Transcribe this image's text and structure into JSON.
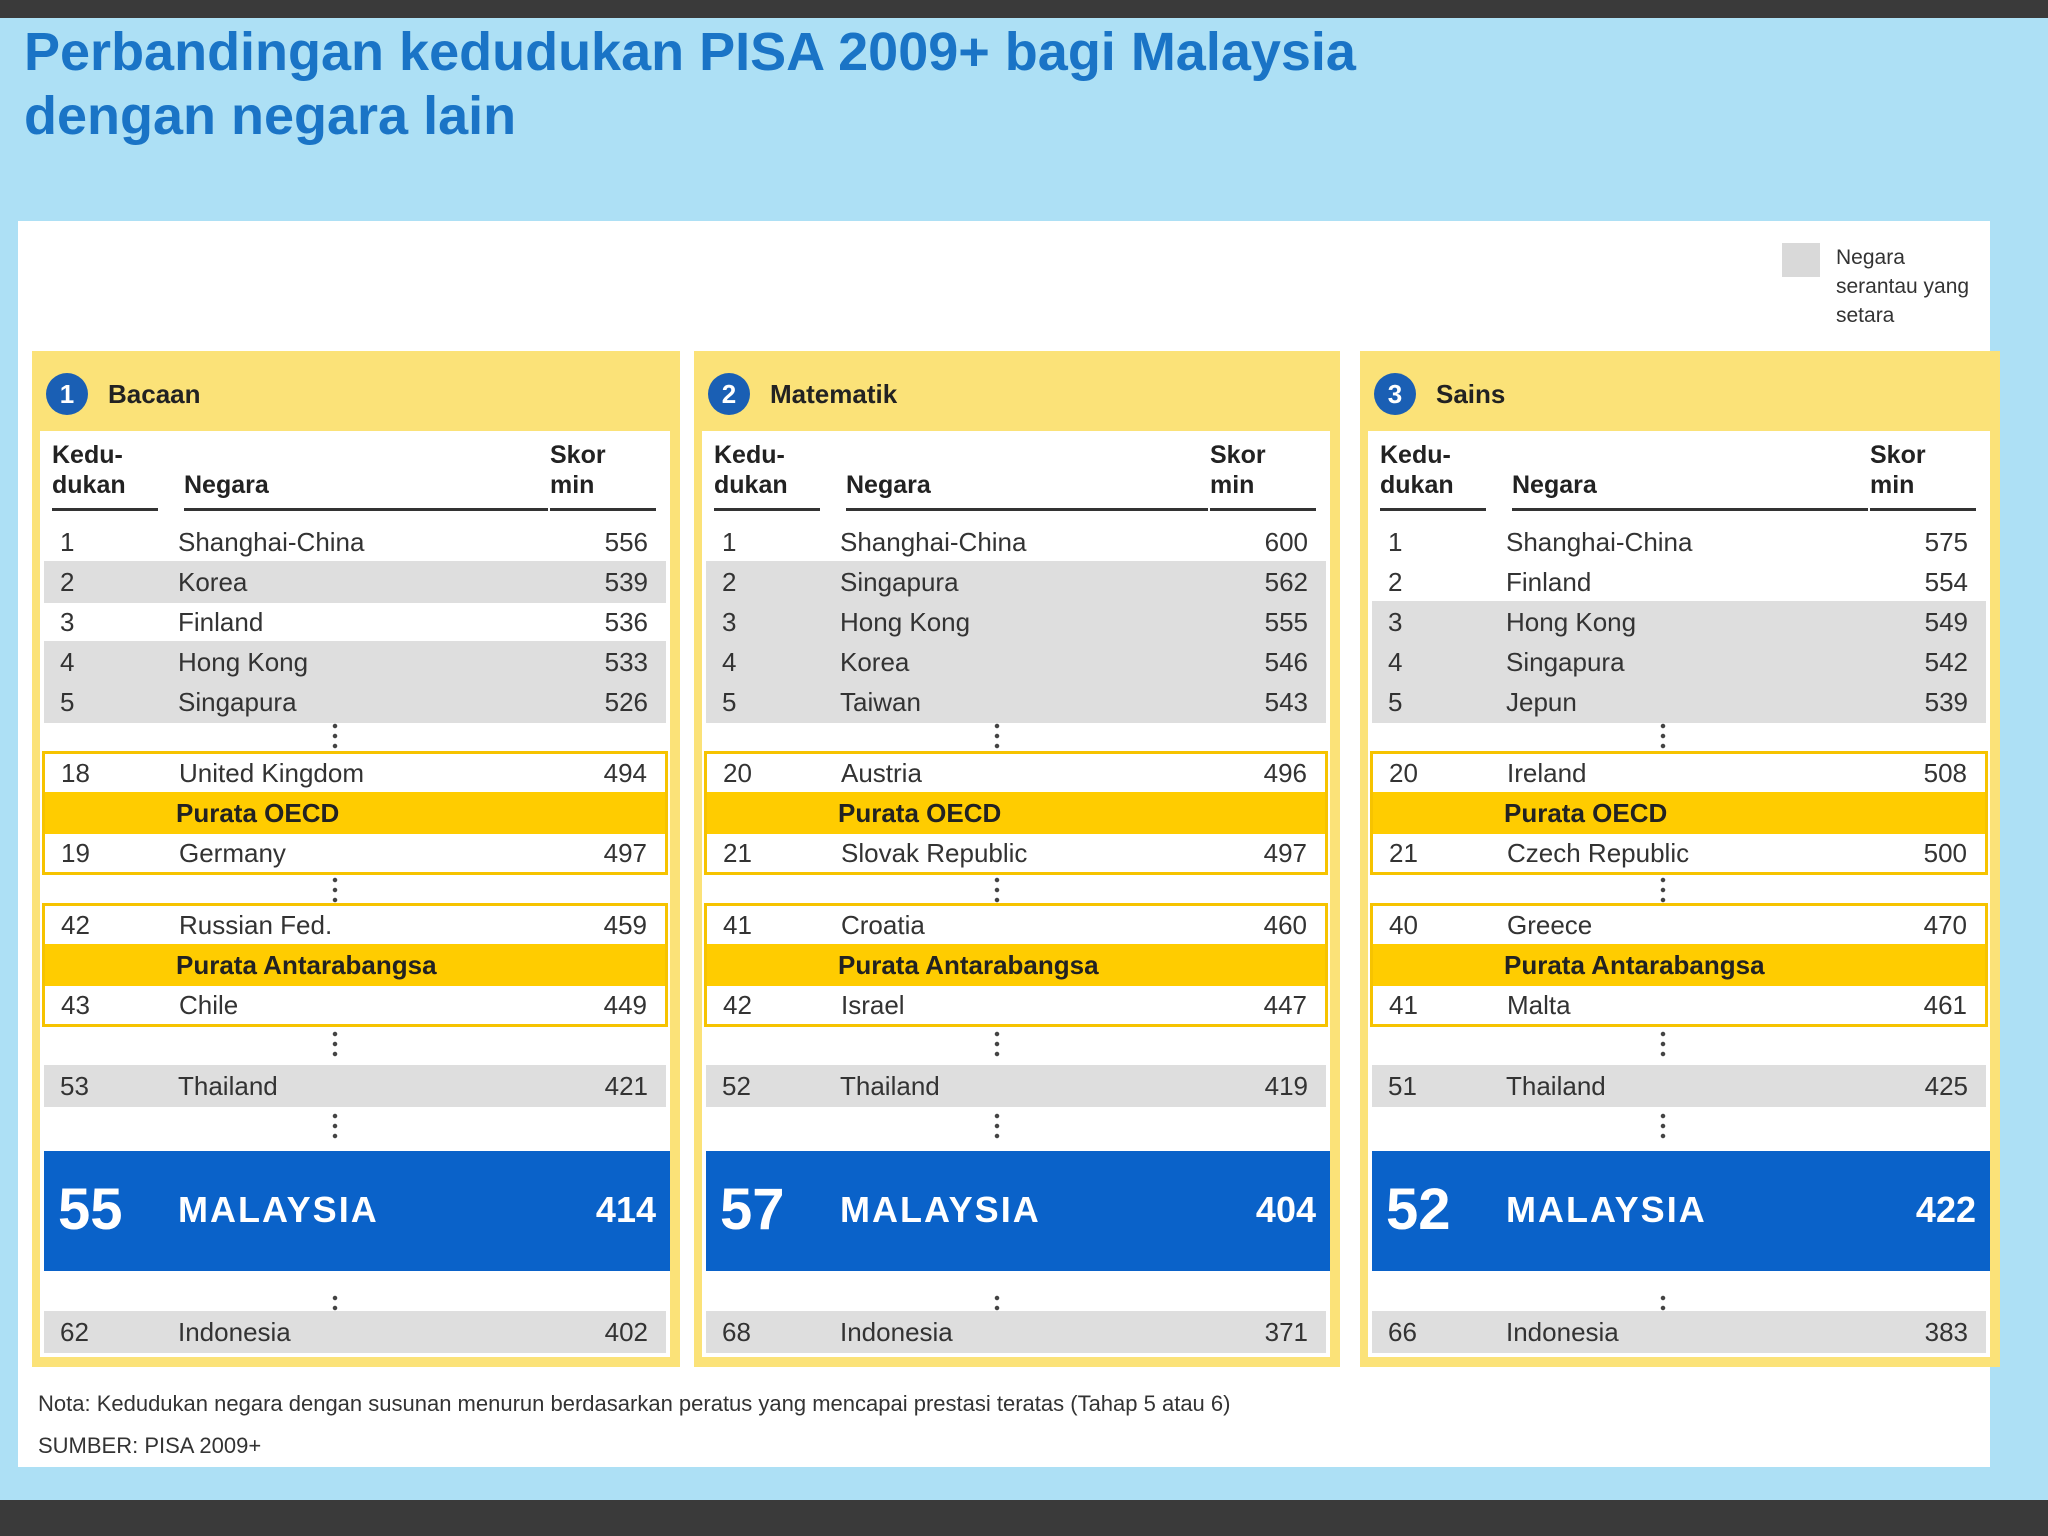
{
  "title_lines": [
    "Perbandingan kedudukan PISA 2009+ bagi Malaysia",
    "dengan negara lain"
  ],
  "legend": {
    "label": "Negara serantau yang setara",
    "color": "#d9d9d9"
  },
  "headers": {
    "rank": "Kedu-dukan",
    "country": "Negara",
    "score": "Skor min"
  },
  "colors": {
    "panel": "#fbe278",
    "band": "#ffcc00",
    "malaysia": "#0a62c9",
    "highlight_gray": "#dedede",
    "title": "#1a74c6"
  },
  "note": "Nota: Kedudukan negara dengan susunan menurun berdasarkan peratus yang mencapai prestasi teratas (Tahap 5 atau 6)",
  "source": "SUMBER: PISA 2009+",
  "chart_data": [
    {
      "type": "table",
      "number": "1",
      "title": "Bacaan",
      "top5": [
        {
          "rank": "1",
          "country": "Shanghai-China",
          "score": "556",
          "shaded": false
        },
        {
          "rank": "2",
          "country": "Korea",
          "score": "539",
          "shaded": true
        },
        {
          "rank": "3",
          "country": "Finland",
          "score": "536",
          "shaded": false
        },
        {
          "rank": "4",
          "country": "Hong Kong",
          "score": "533",
          "shaded": true
        },
        {
          "rank": "5",
          "country": "Singapura",
          "score": "526",
          "shaded": true
        }
      ],
      "oecd": {
        "label": "Purata OECD",
        "above": {
          "rank": "18",
          "country": "United Kingdom",
          "score": "494"
        },
        "below": {
          "rank": "19",
          "country": "Germany",
          "score": "497"
        }
      },
      "intl": {
        "label": "Purata Antarabangsa",
        "above": {
          "rank": "42",
          "country": "Russian Fed.",
          "score": "459"
        },
        "below": {
          "rank": "43",
          "country": "Chile",
          "score": "449"
        }
      },
      "thailand": {
        "rank": "53",
        "country": "Thailand",
        "score": "421"
      },
      "malaysia": {
        "rank": "55",
        "country": "MALAYSIA",
        "score": "414"
      },
      "indonesia": {
        "rank": "62",
        "country": "Indonesia",
        "score": "402"
      }
    },
    {
      "type": "table",
      "number": "2",
      "title": "Matematik",
      "top5": [
        {
          "rank": "1",
          "country": "Shanghai-China",
          "score": "600",
          "shaded": false
        },
        {
          "rank": "2",
          "country": "Singapura",
          "score": "562",
          "shaded": true
        },
        {
          "rank": "3",
          "country": "Hong Kong",
          "score": "555",
          "shaded": true
        },
        {
          "rank": "4",
          "country": "Korea",
          "score": "546",
          "shaded": true
        },
        {
          "rank": "5",
          "country": "Taiwan",
          "score": "543",
          "shaded": true
        }
      ],
      "oecd": {
        "label": "Purata OECD",
        "above": {
          "rank": "20",
          "country": "Austria",
          "score": "496"
        },
        "below": {
          "rank": "21",
          "country": "Slovak Republic",
          "score": "497"
        }
      },
      "intl": {
        "label": "Purata Antarabangsa",
        "above": {
          "rank": "41",
          "country": "Croatia",
          "score": "460"
        },
        "below": {
          "rank": "42",
          "country": "Israel",
          "score": "447"
        }
      },
      "thailand": {
        "rank": "52",
        "country": "Thailand",
        "score": "419"
      },
      "malaysia": {
        "rank": "57",
        "country": "MALAYSIA",
        "score": "404"
      },
      "indonesia": {
        "rank": "68",
        "country": "Indonesia",
        "score": "371"
      }
    },
    {
      "type": "table",
      "number": "3",
      "title": "Sains",
      "top5": [
        {
          "rank": "1",
          "country": "Shanghai-China",
          "score": "575",
          "shaded": false
        },
        {
          "rank": "2",
          "country": "Finland",
          "score": "554",
          "shaded": false
        },
        {
          "rank": "3",
          "country": "Hong Kong",
          "score": "549",
          "shaded": true
        },
        {
          "rank": "4",
          "country": "Singapura",
          "score": "542",
          "shaded": true
        },
        {
          "rank": "5",
          "country": "Jepun",
          "score": "539",
          "shaded": true
        }
      ],
      "oecd": {
        "label": "Purata OECD",
        "above": {
          "rank": "20",
          "country": "Ireland",
          "score": "508"
        },
        "below": {
          "rank": "21",
          "country": "Czech Republic",
          "score": "500"
        }
      },
      "intl": {
        "label": "Purata Antarabangsa",
        "above": {
          "rank": "40",
          "country": "Greece",
          "score": "470"
        },
        "below": {
          "rank": "41",
          "country": "Malta",
          "score": "461"
        }
      },
      "thailand": {
        "rank": "51",
        "country": "Thailand",
        "score": "425"
      },
      "malaysia": {
        "rank": "52",
        "country": "MALAYSIA",
        "score": "422"
      },
      "indonesia": {
        "rank": "66",
        "country": "Indonesia",
        "score": "383"
      }
    }
  ]
}
